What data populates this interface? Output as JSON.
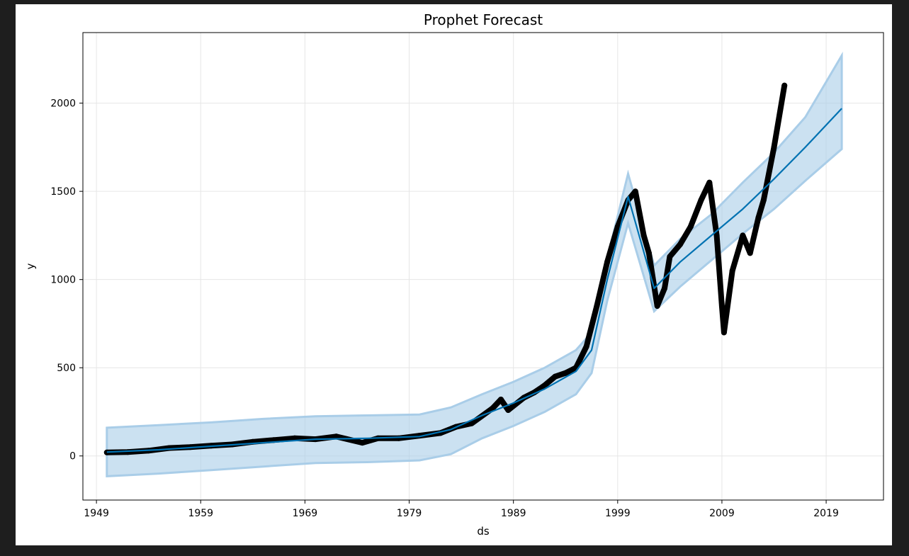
{
  "chart_data": {
    "type": "line",
    "title": "Prophet Forecast",
    "xlabel": "ds",
    "ylabel": "y",
    "xlim": [
      1947.7,
      2024.5
    ],
    "ylim": [
      -250,
      2400
    ],
    "x_ticks": [
      1949,
      1959,
      1969,
      1979,
      1989,
      1999,
      2009,
      2019
    ],
    "y_ticks": [
      0,
      500,
      1000,
      1500,
      2000
    ],
    "grid": true,
    "colors": {
      "forecast": "#0072b2",
      "band": "#a9cde8",
      "observed": "#000000",
      "grid": "#e6e6e6"
    },
    "series": [
      {
        "kind": "observed",
        "x": [
          1950.0,
          1952.0,
          1954.0,
          1956.0,
          1958.0,
          1960.0,
          1962.0,
          1964.0,
          1966.0,
          1968.0,
          1970.0,
          1972.0,
          1974.5,
          1976.0,
          1978.0,
          1980.0,
          1982.0,
          1983.5,
          1985.0,
          1987.0,
          1987.8,
          1988.5,
          1990.0,
          1991.0,
          1992.0,
          1993.0,
          1994.0,
          1995.0,
          1996.0,
          1997.0,
          1998.0,
          1998.5,
          1999.0,
          2000.0,
          2000.7,
          2001.5,
          2002.0,
          2002.8,
          2003.5,
          2004.0,
          2005.0,
          2006.0,
          2007.0,
          2007.8,
          2008.5,
          2009.0,
          2009.2,
          2010.0,
          2011.0,
          2011.7,
          2012.5,
          2013.0,
          2014.0,
          2015.0
        ],
        "y": [
          20,
          22,
          30,
          45,
          50,
          58,
          65,
          80,
          90,
          100,
          95,
          110,
          75,
          100,
          100,
          115,
          130,
          165,
          185,
          270,
          320,
          260,
          330,
          360,
          400,
          450,
          470,
          500,
          620,
          850,
          1100,
          1200,
          1300,
          1450,
          1500,
          1250,
          1150,
          850,
          950,
          1130,
          1200,
          1300,
          1450,
          1550,
          1250,
          850,
          700,
          1050,
          1250,
          1150,
          1350,
          1450,
          1750,
          2100
        ]
      },
      {
        "kind": "forecast",
        "x": [
          1950.0,
          1955.0,
          1960.0,
          1965.0,
          1970.0,
          1975.0,
          1980.0,
          1983.0,
          1986.0,
          1989.0,
          1992.0,
          1995.0,
          1996.5,
          1998.0,
          2000.0,
          2002.5,
          2005.0,
          2008.0,
          2011.0,
          2014.0,
          2017.0,
          2020.5
        ],
        "y": [
          22,
          35,
          55,
          75,
          95,
          100,
          110,
          150,
          230,
          300,
          380,
          480,
          600,
          1000,
          1470,
          950,
          1100,
          1250,
          1400,
          1570,
          1750,
          1970
        ]
      },
      {
        "kind": "band",
        "x": [
          1950.0,
          1955.0,
          1960.0,
          1965.0,
          1970.0,
          1975.0,
          1980.0,
          1983.0,
          1986.0,
          1989.0,
          1992.0,
          1995.0,
          1996.5,
          1998.0,
          2000.0,
          2002.5,
          2005.0,
          2008.0,
          2011.0,
          2014.0,
          2017.0,
          2020.5
        ],
        "upper": [
          160,
          175,
          190,
          210,
          225,
          230,
          235,
          275,
          350,
          420,
          500,
          600,
          700,
          1120,
          1600,
          1080,
          1230,
          1370,
          1550,
          1720,
          1920,
          2270
        ],
        "lower": [
          -115,
          -100,
          -80,
          -60,
          -40,
          -35,
          -25,
          10,
          100,
          170,
          250,
          350,
          470,
          880,
          1320,
          820,
          960,
          1110,
          1260,
          1400,
          1560,
          1740
        ]
      }
    ]
  }
}
